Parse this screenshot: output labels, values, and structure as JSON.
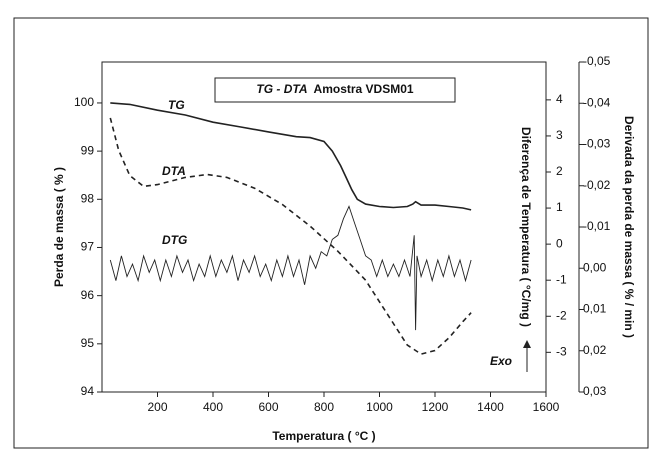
{
  "chart_data": {
    "type": "line",
    "title_emphasis": "TG - DTA",
    "title": "Amostra  VDSM01",
    "x_label": "Temperatura ( °C )",
    "y_label": "Perda de massa ( % )",
    "y2_label": "Diferença de Temperatura ( °C/mg )",
    "y3_label": "Derivada da perda de massa ( % / min )",
    "annotation": "Exo",
    "xlim": [
      0,
      1600
    ],
    "xticks": [
      200,
      400,
      600,
      800,
      1000,
      1200,
      1400,
      1600
    ],
    "ylim": [
      94,
      100.85
    ],
    "yticks": [
      94,
      95,
      96,
      97,
      98,
      99,
      100
    ],
    "y2lim": [
      -4.1,
      5.05
    ],
    "y2ticks": [
      -3,
      -2,
      -1,
      0,
      1,
      2,
      3,
      4
    ],
    "y3lim": [
      0.03,
      -0.05
    ],
    "y3ticks": [
      {
        "value": 0.03,
        "label": "0,03"
      },
      {
        "value": 0.02,
        "label": "0,02"
      },
      {
        "value": 0.01,
        "label": "0,01"
      },
      {
        "value": 0,
        "label": "0,00"
      },
      {
        "value": -0.01,
        "label": "-0,01"
      },
      {
        "value": -0.02,
        "label": "-0,02"
      },
      {
        "value": -0.03,
        "label": "-0,03"
      },
      {
        "value": -0.04,
        "label": "-0,04"
      },
      {
        "value": -0.05,
        "label": "-0,05"
      }
    ],
    "series": [
      {
        "name": "TG",
        "color": "#222222",
        "axis": "y",
        "dash": false,
        "x": [
          30,
          100,
          200,
          300,
          400,
          500,
          600,
          700,
          750,
          800,
          830,
          860,
          880,
          900,
          920,
          950,
          1000,
          1050,
          1100,
          1120,
          1130,
          1150,
          1200,
          1250,
          1300,
          1330
        ],
        "values": [
          100.0,
          99.97,
          99.85,
          99.75,
          99.6,
          99.5,
          99.4,
          99.3,
          99.28,
          99.2,
          99.0,
          98.7,
          98.45,
          98.2,
          98.0,
          97.9,
          97.85,
          97.83,
          97.85,
          97.9,
          97.95,
          97.88,
          97.88,
          97.85,
          97.82,
          97.78
        ]
      },
      {
        "name": "DTA",
        "color": "#222222",
        "axis": "y2",
        "dash": true,
        "x": [
          30,
          60,
          100,
          150,
          200,
          300,
          380,
          450,
          550,
          650,
          750,
          850,
          950,
          1050,
          1100,
          1150,
          1200,
          1250,
          1300,
          1330
        ],
        "values": [
          3.5,
          2.6,
          1.9,
          1.6,
          1.65,
          1.85,
          1.93,
          1.85,
          1.55,
          1.1,
          0.5,
          -0.2,
          -1.0,
          -2.2,
          -2.8,
          -3.05,
          -2.95,
          -2.6,
          -2.15,
          -1.9
        ]
      },
      {
        "name": "DTG",
        "color": "#222222",
        "axis": "y3",
        "dash": false,
        "x": [
          30,
          50,
          70,
          90,
          110,
          130,
          150,
          170,
          190,
          210,
          230,
          250,
          270,
          290,
          310,
          330,
          350,
          370,
          390,
          410,
          430,
          450,
          470,
          490,
          510,
          530,
          550,
          570,
          590,
          610,
          630,
          650,
          670,
          690,
          710,
          730,
          750,
          770,
          790,
          810,
          830,
          850,
          870,
          890,
          910,
          930,
          950,
          970,
          990,
          1010,
          1030,
          1050,
          1070,
          1090,
          1110,
          1125,
          1130,
          1135,
          1150,
          1170,
          1190,
          1210,
          1230,
          1250,
          1270,
          1290,
          1310,
          1330
        ],
        "values": [
          -0.002,
          0.003,
          -0.003,
          0.002,
          -0.001,
          0.003,
          -0.003,
          0.001,
          -0.002,
          0.003,
          -0.002,
          0.002,
          -0.003,
          0.001,
          -0.002,
          0.003,
          -0.001,
          0.002,
          -0.003,
          0.002,
          -0.002,
          0.001,
          -0.003,
          0.003,
          -0.002,
          0.001,
          -0.003,
          0.002,
          -0.001,
          0.003,
          -0.002,
          0.002,
          -0.003,
          0.002,
          -0.002,
          0.004,
          -0.003,
          0.0,
          -0.004,
          -0.003,
          -0.007,
          -0.008,
          -0.012,
          -0.015,
          -0.011,
          -0.007,
          -0.003,
          -0.002,
          0.002,
          -0.002,
          0.002,
          -0.001,
          0.002,
          -0.002,
          0.002,
          -0.008,
          0.015,
          -0.003,
          0.002,
          -0.002,
          0.003,
          -0.002,
          0.002,
          -0.003,
          0.002,
          -0.002,
          0.003,
          -0.002
        ]
      }
    ]
  }
}
